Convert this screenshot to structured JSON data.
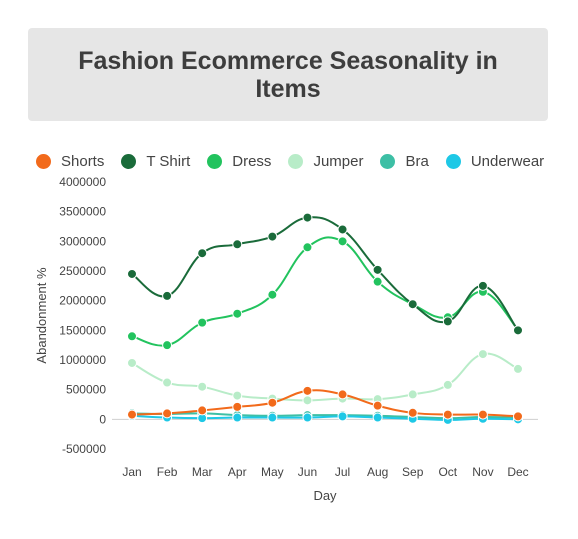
{
  "chart_data": {
    "type": "line",
    "title": "Fashion Ecommerce Seasonality in Items",
    "xlabel": "Day",
    "ylabel": "Abandonment %",
    "categories": [
      "Jan",
      "Feb",
      "Mar",
      "Apr",
      "May",
      "Jun",
      "Jul",
      "Aug",
      "Sep",
      "Oct",
      "Nov",
      "Dec"
    ],
    "ylim": [
      -500000,
      4000000
    ],
    "yticks": [
      -500000,
      0,
      500000,
      1000000,
      1500000,
      2000000,
      2500000,
      3000000,
      3500000,
      4000000
    ],
    "ytick_labels": [
      "-500000",
      "0",
      "500000",
      "1000000",
      "1500000",
      "2000000",
      "2500000",
      "3000000",
      "3500000",
      "4000000"
    ],
    "grid": false,
    "legend_position": "top",
    "series": [
      {
        "name": "Shorts",
        "color": "#f26a1b",
        "values": [
          80000,
          100000,
          150000,
          210000,
          280000,
          480000,
          420000,
          230000,
          110000,
          80000,
          80000,
          50000
        ]
      },
      {
        "name": "T Shirt",
        "color": "#1a6b3a",
        "values": [
          2450000,
          2080000,
          2800000,
          2950000,
          3080000,
          3400000,
          3200000,
          2520000,
          1940000,
          1650000,
          2250000,
          1500000
        ]
      },
      {
        "name": "Dress",
        "color": "#22c35e",
        "values": [
          1400000,
          1250000,
          1630000,
          1780000,
          2100000,
          2900000,
          3000000,
          2320000,
          1940000,
          1720000,
          2150000,
          1510000
        ]
      },
      {
        "name": "Jumper",
        "color": "#b8ecc8",
        "values": [
          950000,
          620000,
          550000,
          400000,
          350000,
          320000,
          350000,
          340000,
          420000,
          580000,
          1100000,
          850000
        ]
      },
      {
        "name": "Bra",
        "color": "#3dbfa5",
        "values": [
          100000,
          90000,
          100000,
          70000,
          60000,
          70000,
          70000,
          60000,
          40000,
          20000,
          40000,
          30000
        ]
      },
      {
        "name": "Underwear",
        "color": "#1ec8e6",
        "values": [
          60000,
          30000,
          20000,
          30000,
          30000,
          30000,
          50000,
          30000,
          10000,
          -10000,
          10000,
          0
        ]
      }
    ]
  }
}
